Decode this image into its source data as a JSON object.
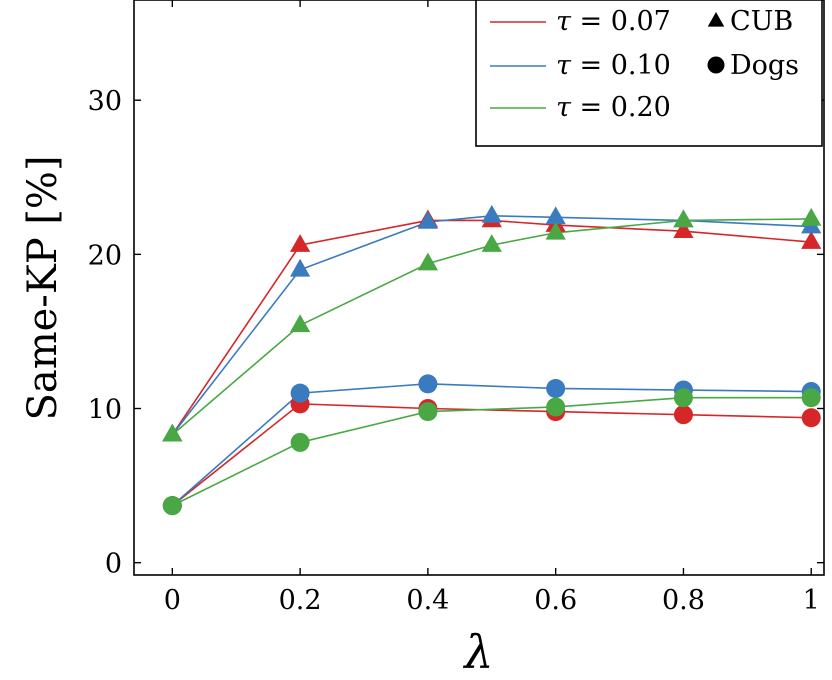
{
  "chart_data": {
    "type": "line",
    "xlabel": "λ",
    "ylabel": "Same-KP [%]",
    "xlim": [
      -0.06,
      1.02
    ],
    "ylim": [
      -0.8,
      36.5
    ],
    "x_ticks": [
      0,
      0.2,
      0.4,
      0.6,
      0.8,
      1
    ],
    "x_tick_labels": [
      "0",
      "0.2",
      "0.4",
      "0.6",
      "0.8",
      "1"
    ],
    "y_ticks": [
      0,
      10,
      20,
      30
    ],
    "y_tick_labels": [
      "0",
      "10",
      "20",
      "30"
    ],
    "grid": false,
    "legend_position": "top-right",
    "colors": {
      "tau_007": "#d62728",
      "tau_010": "#3a7bbf",
      "tau_020": "#4aa844"
    },
    "legend": {
      "entries": [
        {
          "sym": "τ",
          "eq": " = 0.07",
          "color": "#d62728"
        },
        {
          "sym": "τ",
          "eq": " = 0.10",
          "color": "#3a7bbf"
        },
        {
          "sym": "τ",
          "eq": " = 0.20",
          "color": "#4aa844"
        }
      ],
      "markers": [
        {
          "marker": "triangle",
          "label": "CUB"
        },
        {
          "marker": "circle",
          "label": "Dogs"
        }
      ]
    },
    "series": [
      {
        "dataset": "CUB",
        "tau": "0.07",
        "color": "#d62728",
        "marker": "triangle",
        "x": [
          0,
          0.2,
          0.4,
          0.5,
          0.6,
          0.8,
          1
        ],
        "y": [
          8.3,
          20.6,
          22.2,
          22.2,
          21.9,
          21.5,
          20.8
        ]
      },
      {
        "dataset": "CUB",
        "tau": "0.10",
        "color": "#3a7bbf",
        "marker": "triangle",
        "x": [
          0,
          0.2,
          0.4,
          0.5,
          0.6,
          0.8,
          1
        ],
        "y": [
          8.3,
          19.0,
          22.1,
          22.5,
          22.4,
          22.2,
          21.8
        ]
      },
      {
        "dataset": "CUB",
        "tau": "0.20",
        "color": "#4aa844",
        "marker": "triangle",
        "x": [
          0,
          0.2,
          0.4,
          0.5,
          0.6,
          0.8,
          1
        ],
        "y": [
          8.3,
          15.4,
          19.4,
          20.6,
          21.4,
          22.2,
          22.3
        ]
      },
      {
        "dataset": "Dogs",
        "tau": "0.07",
        "color": "#d62728",
        "marker": "circle",
        "x": [
          0,
          0.2,
          0.4,
          0.6,
          0.8,
          1
        ],
        "y": [
          3.7,
          10.3,
          10.0,
          9.8,
          9.6,
          9.4
        ]
      },
      {
        "dataset": "Dogs",
        "tau": "0.10",
        "color": "#3a7bbf",
        "marker": "circle",
        "x": [
          0,
          0.2,
          0.4,
          0.6,
          0.8,
          1
        ],
        "y": [
          3.7,
          11.0,
          11.6,
          11.3,
          11.2,
          11.1
        ]
      },
      {
        "dataset": "Dogs",
        "tau": "0.20",
        "color": "#4aa844",
        "marker": "circle",
        "x": [
          0,
          0.2,
          0.4,
          0.6,
          0.8,
          1
        ],
        "y": [
          3.7,
          7.8,
          9.8,
          10.1,
          10.7,
          10.7
        ]
      }
    ]
  }
}
